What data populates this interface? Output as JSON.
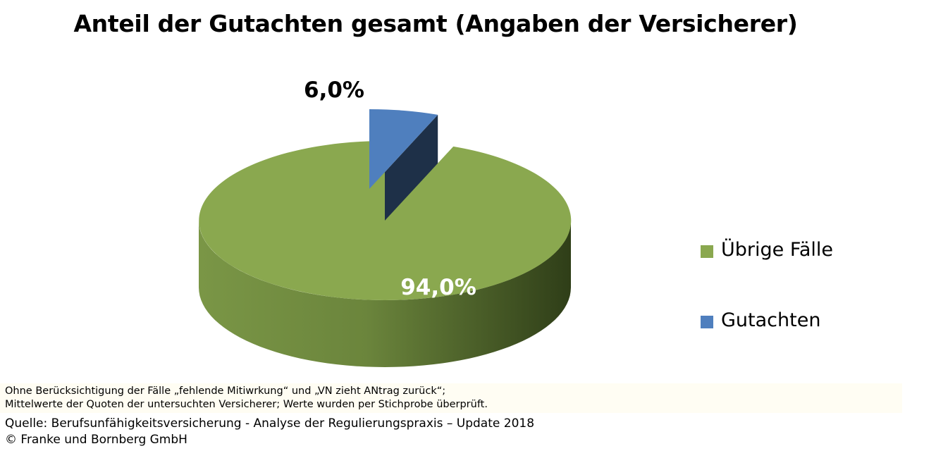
{
  "chart_data": {
    "type": "pie",
    "title": "Anteil der Gutachten gesamt (Angaben der Versicherer)",
    "slices": [
      {
        "name": "Übrige Fälle",
        "value": 94.0,
        "label": "94,0%",
        "color": "#8aa84f"
      },
      {
        "name": "Gutachten",
        "value": 6.0,
        "label": "6,0%",
        "color": "#4f7fbe"
      }
    ],
    "legend_position": "right",
    "style": "3d-exploded"
  },
  "legend": [
    {
      "label": "Übrige Fälle",
      "color": "#8aa84f"
    },
    {
      "label": "Gutachten",
      "color": "#4f7fbe"
    }
  ],
  "footnote": {
    "line1": "Ohne Berücksichtigung der Fälle „fehlende Mitiwrkung“ und „VN zieht ANtrag zurück“;",
    "line2": "Mittelwerte der Quoten der untersuchten Versicherer; Werte wurden per Stichprobe überprüft."
  },
  "source": {
    "line1": "Quelle: Berufsunfähigkeitsversicherung - Analyse der Regulierungspraxis – Update 2018",
    "line2": "© Franke und Bornberg GmbH"
  }
}
